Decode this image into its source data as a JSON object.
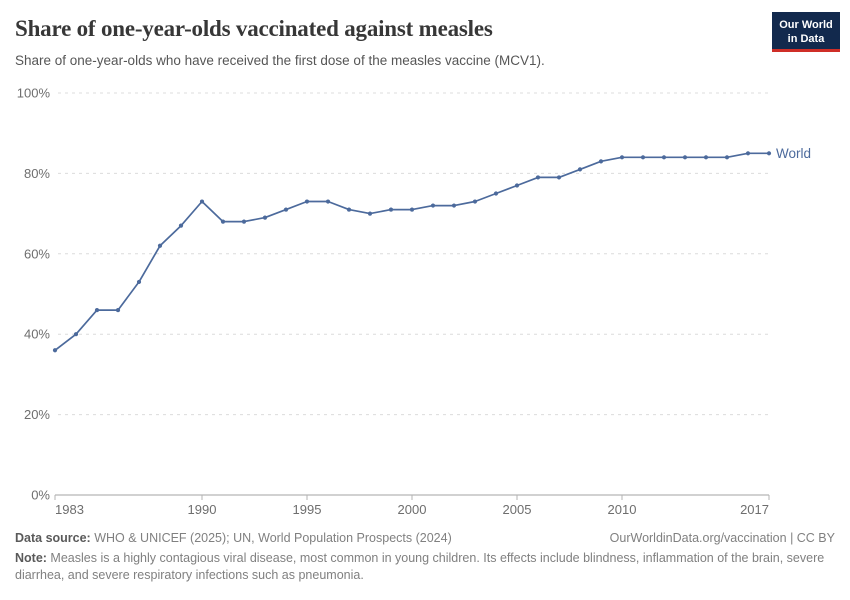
{
  "header": {
    "title": "Share of one-year-olds vaccinated against measles",
    "subtitle": "Share of one-year-olds who have received the first dose of the measles vaccine (MCV1).",
    "logo": {
      "line1": "Our World",
      "line2": "in Data"
    }
  },
  "chart_data": {
    "type": "line",
    "title": "Share of one-year-olds vaccinated against measles",
    "subtitle": "Share of one-year-olds who have received the first dose of the measles vaccine (MCV1).",
    "x": [
      1983,
      1984,
      1985,
      1986,
      1987,
      1988,
      1989,
      1990,
      1991,
      1992,
      1993,
      1994,
      1995,
      1996,
      1997,
      1998,
      1999,
      2000,
      2001,
      2002,
      2003,
      2004,
      2005,
      2006,
      2007,
      2008,
      2009,
      2010,
      2011,
      2012,
      2013,
      2014,
      2015,
      2016,
      2017
    ],
    "series": [
      {
        "name": "World",
        "color": "#4c6a9c",
        "values": [
          36,
          40,
          46,
          46,
          53,
          62,
          67,
          73,
          68,
          68,
          69,
          71,
          73,
          73,
          71,
          70,
          71,
          71,
          72,
          72,
          73,
          75,
          77,
          79,
          79,
          81,
          83,
          84,
          84,
          84,
          84,
          84,
          84,
          85,
          85
        ]
      }
    ],
    "xlim": [
      1983,
      2017
    ],
    "ylim": [
      0,
      100
    ],
    "xticks": [
      1983,
      1990,
      1995,
      2000,
      2005,
      2010,
      2017
    ],
    "yticks": [
      0,
      20,
      40,
      60,
      80,
      100
    ],
    "ytick_suffix": "%",
    "grid": "horizontal-dashed",
    "legend_position": "end-of-line",
    "colors": {
      "grid": "#dcdcdc",
      "axis": "#a3a3a3",
      "tick": "#b3b3b3",
      "tick_label": "#6e6e6e"
    }
  },
  "footer": {
    "datasource_label": "Data source:",
    "datasource_text": " WHO & UNICEF (2025); UN, World Population Prospects (2024)",
    "link": "OurWorldinData.org/vaccination | CC BY",
    "note_label": "Note:",
    "note_text": " Measles is a highly contagious viral disease, most common in young children. Its effects include blindness, inflammation of the brain, severe diarrhea, and severe respiratory infections such as pneumonia."
  }
}
